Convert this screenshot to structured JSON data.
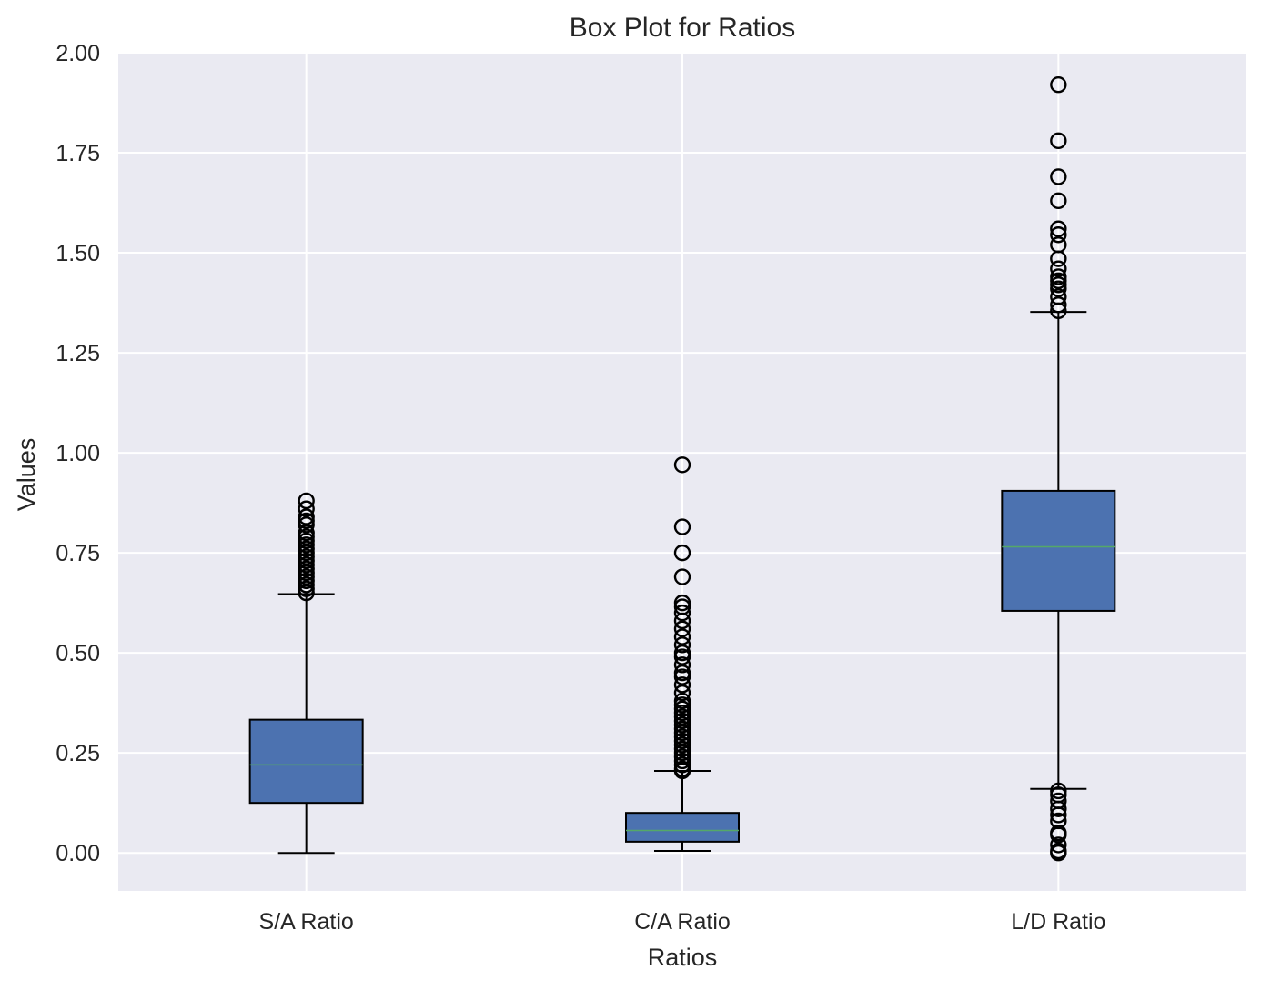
{
  "chart_data": {
    "type": "box",
    "title": "Box Plot for Ratios",
    "xlabel": "Ratios",
    "ylabel": "Values",
    "ylim": [
      -0.095,
      2.0
    ],
    "yticks": [
      "0.00",
      "0.25",
      "0.50",
      "0.75",
      "1.00",
      "1.25",
      "1.50",
      "1.75",
      "2.00"
    ],
    "ytick_values": [
      0,
      0.25,
      0.5,
      0.75,
      1.0,
      1.25,
      1.5,
      1.75,
      2.0
    ],
    "grid": true,
    "categories": [
      "S/A Ratio",
      "C/A Ratio",
      "L/D Ratio"
    ],
    "boxes": [
      {
        "label": "S/A Ratio",
        "whisker_low": 0.0,
        "q1": 0.125,
        "median": 0.22,
        "q3": 0.333,
        "whisker_high": 0.647,
        "outliers": [
          0.65,
          0.66,
          0.67,
          0.68,
          0.69,
          0.7,
          0.71,
          0.72,
          0.73,
          0.74,
          0.75,
          0.76,
          0.77,
          0.78,
          0.79,
          0.8,
          0.82,
          0.83,
          0.84,
          0.86,
          0.88
        ]
      },
      {
        "label": "C/A Ratio",
        "whisker_low": 0.005,
        "q1": 0.028,
        "median": 0.056,
        "q3": 0.1,
        "whisker_high": 0.205,
        "outliers": [
          0.205,
          0.21,
          0.22,
          0.23,
          0.24,
          0.25,
          0.26,
          0.27,
          0.28,
          0.29,
          0.3,
          0.31,
          0.32,
          0.33,
          0.34,
          0.35,
          0.36,
          0.37,
          0.38,
          0.4,
          0.42,
          0.44,
          0.45,
          0.47,
          0.49,
          0.5,
          0.52,
          0.54,
          0.56,
          0.58,
          0.6,
          0.615,
          0.625,
          0.69,
          0.75,
          0.815,
          0.97
        ]
      },
      {
        "label": "L/D Ratio",
        "whisker_low": 0.16,
        "q1": 0.605,
        "median": 0.765,
        "q3": 0.905,
        "whisker_high": 1.352,
        "outliers": [
          0.0,
          0.005,
          0.02,
          0.045,
          0.05,
          0.08,
          0.095,
          0.11,
          0.13,
          0.145,
          0.155,
          1.355,
          1.37,
          1.39,
          1.41,
          1.42,
          1.43,
          1.44,
          1.46,
          1.485,
          1.52,
          1.545,
          1.56,
          1.63,
          1.69,
          1.78,
          1.92
        ]
      }
    ],
    "colors": {
      "box_fill": "#4c72b0",
      "median": "#55a868",
      "plot_background": "#eaeaf2",
      "grid": "#ffffff",
      "edge": "#000000"
    }
  }
}
